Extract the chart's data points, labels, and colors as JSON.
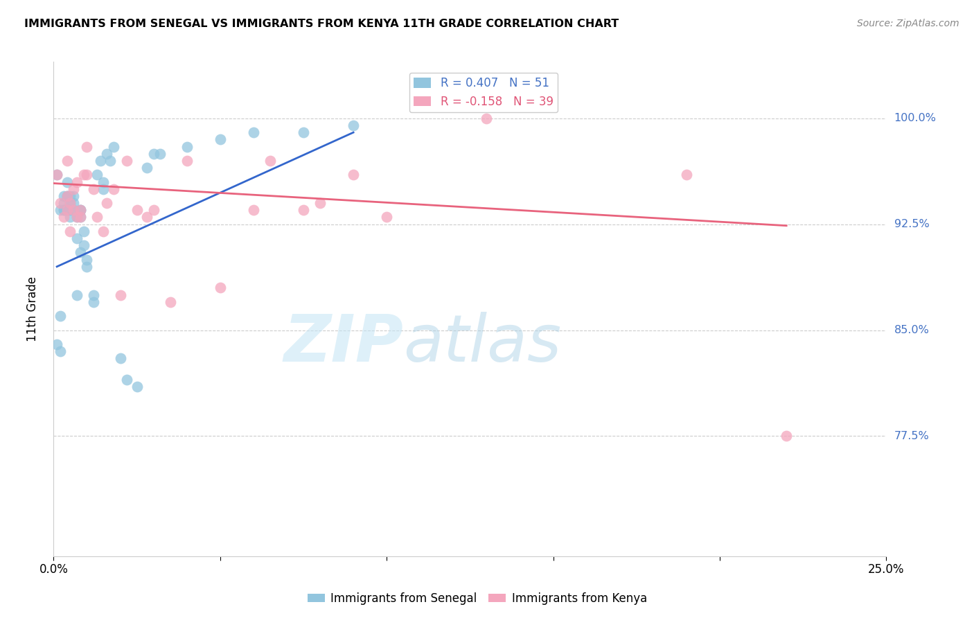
{
  "title": "IMMIGRANTS FROM SENEGAL VS IMMIGRANTS FROM KENYA 11TH GRADE CORRELATION CHART",
  "source": "Source: ZipAtlas.com",
  "ylabel": "11th Grade",
  "ytick_labels": [
    "77.5%",
    "85.0%",
    "92.5%",
    "100.0%"
  ],
  "ytick_values": [
    0.775,
    0.85,
    0.925,
    1.0
  ],
  "xlim": [
    0.0,
    0.25
  ],
  "ylim": [
    0.69,
    1.04
  ],
  "legend_blue": "R = 0.407   N = 51",
  "legend_pink": "R = -0.158   N = 39",
  "watermark_zip": "ZIP",
  "watermark_atlas": "atlas",
  "blue_color": "#92c5de",
  "pink_color": "#f4a6bd",
  "line_blue": "#3366cc",
  "line_pink": "#e8637d",
  "blue_trendline": [
    [
      0.001,
      0.895
    ],
    [
      0.09,
      0.99
    ]
  ],
  "pink_trendline": [
    [
      0.0,
      0.954
    ],
    [
      0.22,
      0.924
    ]
  ],
  "senegal_x": [
    0.001,
    0.002,
    0.002,
    0.003,
    0.003,
    0.003,
    0.004,
    0.004,
    0.004,
    0.004,
    0.005,
    0.005,
    0.005,
    0.005,
    0.006,
    0.006,
    0.006,
    0.007,
    0.007,
    0.007,
    0.008,
    0.008,
    0.008,
    0.008,
    0.009,
    0.009,
    0.01,
    0.01,
    0.012,
    0.012,
    0.013,
    0.014,
    0.015,
    0.015,
    0.016,
    0.017,
    0.018,
    0.02,
    0.022,
    0.025,
    0.028,
    0.03,
    0.032,
    0.04,
    0.05,
    0.06,
    0.075,
    0.09,
    0.001,
    0.002,
    0.003
  ],
  "senegal_y": [
    0.84,
    0.86,
    0.835,
    0.935,
    0.935,
    0.945,
    0.935,
    0.945,
    0.945,
    0.955,
    0.93,
    0.935,
    0.94,
    0.945,
    0.935,
    0.94,
    0.945,
    0.875,
    0.915,
    0.93,
    0.905,
    0.93,
    0.935,
    0.935,
    0.91,
    0.92,
    0.895,
    0.9,
    0.87,
    0.875,
    0.96,
    0.97,
    0.95,
    0.955,
    0.975,
    0.97,
    0.98,
    0.83,
    0.815,
    0.81,
    0.965,
    0.975,
    0.975,
    0.98,
    0.985,
    0.99,
    0.99,
    0.995,
    0.96,
    0.935,
    0.94
  ],
  "kenya_x": [
    0.001,
    0.002,
    0.003,
    0.004,
    0.004,
    0.005,
    0.005,
    0.006,
    0.006,
    0.007,
    0.008,
    0.008,
    0.009,
    0.01,
    0.01,
    0.012,
    0.013,
    0.015,
    0.016,
    0.018,
    0.02,
    0.022,
    0.025,
    0.028,
    0.03,
    0.035,
    0.04,
    0.05,
    0.06,
    0.065,
    0.075,
    0.08,
    0.09,
    0.1,
    0.13,
    0.19,
    0.22,
    0.004,
    0.007
  ],
  "kenya_y": [
    0.96,
    0.94,
    0.93,
    0.935,
    0.945,
    0.92,
    0.94,
    0.935,
    0.95,
    0.93,
    0.93,
    0.935,
    0.96,
    0.98,
    0.96,
    0.95,
    0.93,
    0.92,
    0.94,
    0.95,
    0.875,
    0.97,
    0.935,
    0.93,
    0.935,
    0.87,
    0.97,
    0.88,
    0.935,
    0.97,
    0.935,
    0.94,
    0.96,
    0.93,
    1.0,
    0.96,
    0.775,
    0.97,
    0.955
  ]
}
